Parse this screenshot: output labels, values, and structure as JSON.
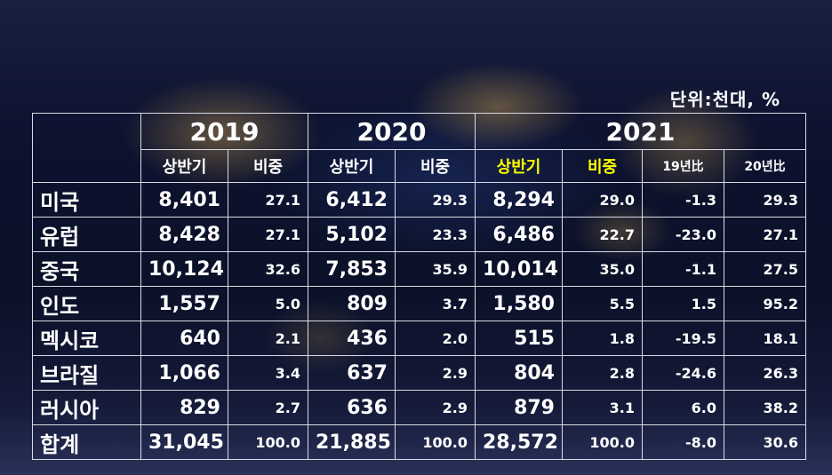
{
  "unit_label": "단위:천대, %",
  "chart_data": {
    "type": "table",
    "years": [
      "2019",
      "2020",
      "2021"
    ],
    "subheaders": [
      "상반기",
      "비중",
      "상반기",
      "비중",
      "상반기",
      "비중",
      "19년比",
      "20년比"
    ],
    "highlight_color": "#ffff00",
    "rows": [
      {
        "name": "미국",
        "values": [
          "8,401",
          "27.1",
          "6,412",
          "29.3",
          "8,294",
          "29.0",
          "-1.3",
          "29.3"
        ]
      },
      {
        "name": "유럽",
        "values": [
          "8,428",
          "27.1",
          "5,102",
          "23.3",
          "6,486",
          "22.7",
          "-23.0",
          "27.1"
        ]
      },
      {
        "name": "중국",
        "values": [
          "10,124",
          "32.6",
          "7,853",
          "35.9",
          "10,014",
          "35.0",
          "-1.1",
          "27.5"
        ]
      },
      {
        "name": "인도",
        "values": [
          "1,557",
          "5.0",
          "809",
          "3.7",
          "1,580",
          "5.5",
          "1.5",
          "95.2"
        ]
      },
      {
        "name": "멕시코",
        "values": [
          "640",
          "2.1",
          "436",
          "2.0",
          "515",
          "1.8",
          "-19.5",
          "18.1"
        ]
      },
      {
        "name": "브라질",
        "values": [
          "1,066",
          "3.4",
          "637",
          "2.9",
          "804",
          "2.8",
          "-24.6",
          "26.3"
        ]
      },
      {
        "name": "러시아",
        "values": [
          "829",
          "2.7",
          "636",
          "2.9",
          "879",
          "3.1",
          "6.0",
          "38.2"
        ]
      },
      {
        "name": "합계",
        "values": [
          "31,045",
          "100.0",
          "21,885",
          "100.0",
          "28,572",
          "100.0",
          "-8.0",
          "30.6"
        ]
      }
    ]
  }
}
